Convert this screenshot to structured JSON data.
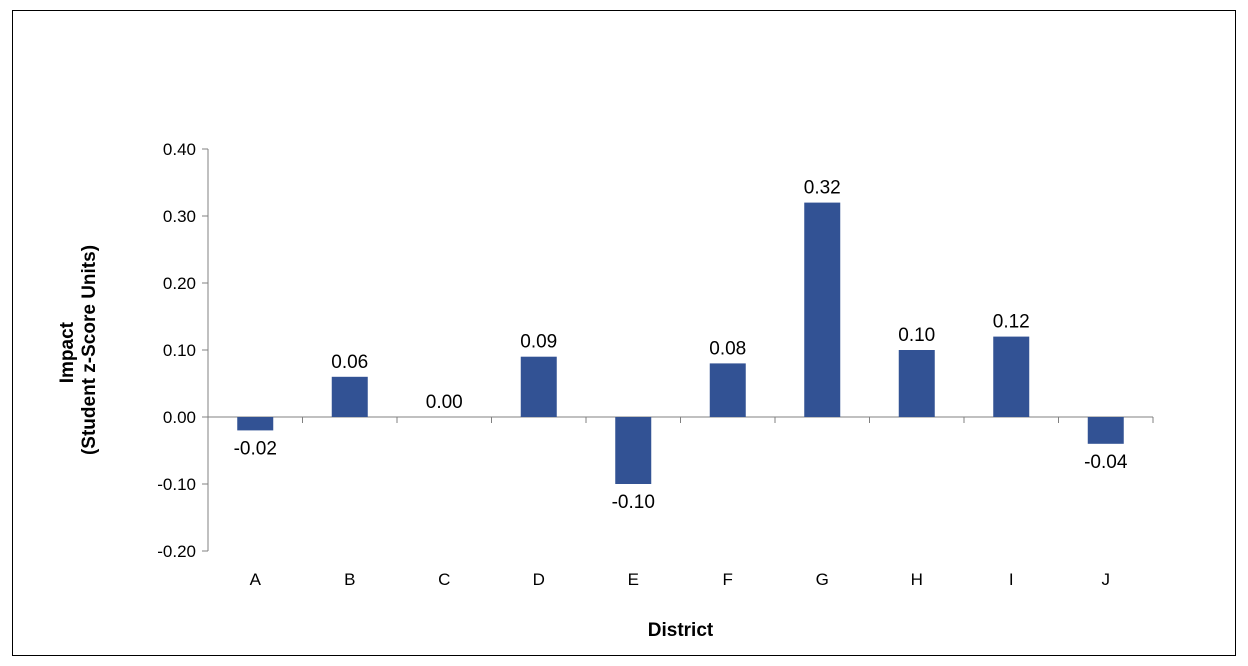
{
  "chart_data": {
    "type": "bar",
    "categories": [
      "A",
      "B",
      "C",
      "D",
      "E",
      "F",
      "G",
      "H",
      "I",
      "J"
    ],
    "values": [
      -0.02,
      0.06,
      0.0,
      0.09,
      -0.1,
      0.08,
      0.32,
      0.1,
      0.12,
      -0.04
    ],
    "data_labels": [
      "-0.02",
      "0.06",
      "0.00",
      "0.09",
      "-0.10",
      "0.08",
      "0.32",
      "0.10",
      "0.12",
      "-0.04"
    ],
    "title": "",
    "xlabel": "District",
    "ylabel_lines": [
      "Impact",
      "(Student z-Score Units)"
    ],
    "ylim": [
      -0.2,
      0.4
    ],
    "yticks": [
      -0.2,
      -0.1,
      0.0,
      0.1,
      0.2,
      0.3,
      0.4
    ],
    "ytick_labels": [
      "-0.20",
      "-0.10",
      "0.00",
      "0.10",
      "0.20",
      "0.30",
      "0.40"
    ],
    "grid": false,
    "legend": "none",
    "bar_color": "#325294"
  }
}
